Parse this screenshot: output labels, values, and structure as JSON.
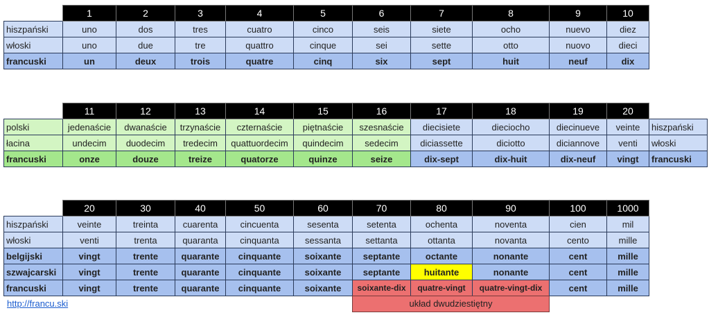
{
  "colors": {
    "header": "#000000",
    "blue": "#cddcf6",
    "blue_bold": "#a6c0ee",
    "green": "#d3f5c3",
    "green_bold": "#a4e78c",
    "red": "#ec7070",
    "yellow": "#ffff00"
  },
  "tables": [
    {
      "header": [
        "1",
        "2",
        "3",
        "4",
        "5",
        "6",
        "7",
        "8",
        "9",
        "10"
      ],
      "col_tones": [
        "blue",
        "blue",
        "blue",
        "blue",
        "blue",
        "blue",
        "blue",
        "blue",
        "blue",
        "blue"
      ],
      "rows": [
        {
          "label": "hiszpański",
          "tone": "blue",
          "bold": false,
          "cells": [
            "uno",
            "dos",
            "tres",
            "cuatro",
            "cinco",
            "seis",
            "siete",
            "ocho",
            "nuevo",
            "diez"
          ]
        },
        {
          "label": "włoski",
          "tone": "blue",
          "bold": false,
          "cells": [
            "uno",
            "due",
            "tre",
            "quattro",
            "cinque",
            "sei",
            "sette",
            "otto",
            "nuovo",
            "dieci"
          ]
        },
        {
          "label": "francuski",
          "tone": "blue",
          "bold": true,
          "cells": [
            "un",
            "deux",
            "trois",
            "quatre",
            "cinq",
            "six",
            "sept",
            "huit",
            "neuf",
            "dix"
          ]
        }
      ]
    },
    {
      "header": [
        "11",
        "12",
        "13",
        "14",
        "15",
        "16",
        "17",
        "18",
        "19",
        "20"
      ],
      "col_tones": [
        "green",
        "green",
        "green",
        "green",
        "green",
        "green",
        "blue",
        "blue",
        "blue",
        "blue"
      ],
      "rows": [
        {
          "label": "polski",
          "tone": "green",
          "right_label": "hiszpański",
          "bold": false,
          "cells": [
            "jedenaście",
            "dwanaście",
            "trzynaście",
            "czternaście",
            "piętnaście",
            "szesnaście",
            "diecisiete",
            "dieciocho",
            "diecinueve",
            "veinte"
          ]
        },
        {
          "label": "łacina",
          "tone": "green",
          "right_label": "włoski",
          "bold": false,
          "cells": [
            "undecim",
            "duodecim",
            "tredecim",
            "quattuordecim",
            "quindecim",
            "sedecim",
            "diciassette",
            "diciotto",
            "diciannove",
            "venti"
          ]
        },
        {
          "label": "francuski",
          "tone": "green",
          "right_label": "francuski",
          "bold": true,
          "cells": [
            "onze",
            "douze",
            "treize",
            "quatorze",
            "quinze",
            "seize",
            "dix-sept",
            "dix-huit",
            "dix-neuf",
            "vingt"
          ]
        }
      ]
    },
    {
      "header": [
        "20",
        "30",
        "40",
        "50",
        "60",
        "70",
        "80",
        "90",
        "100",
        "1000"
      ],
      "col_tones": [
        "blue",
        "blue",
        "blue",
        "blue",
        "blue",
        "blue",
        "blue",
        "blue",
        "blue",
        "blue"
      ],
      "rows": [
        {
          "label": "hiszpański",
          "tone": "blue",
          "bold": false,
          "cells": [
            "veinte",
            "treinta",
            "cuarenta",
            "cincuenta",
            "sesenta",
            "setenta",
            "ochenta",
            "noventa",
            "cien",
            "mil"
          ]
        },
        {
          "label": "włoski",
          "tone": "blue",
          "bold": false,
          "cells": [
            "venti",
            "trenta",
            "quaranta",
            "cinquanta",
            "sessanta",
            "settanta",
            "ottanta",
            "novanta",
            "cento",
            "mille"
          ]
        },
        {
          "label": "belgijski",
          "tone": "blue",
          "bold": true,
          "cells": [
            "vingt",
            "trente",
            "quarante",
            "cinquante",
            "soixante",
            "septante",
            "octante",
            "nonante",
            "cent",
            "mille"
          ]
        },
        {
          "label": "szwajcarski",
          "tone": "blue",
          "bold": true,
          "cells": [
            "vingt",
            "trente",
            "quarante",
            "cinquante",
            "soixante",
            "septante",
            "huitante",
            "nonante",
            "cent",
            "mille"
          ],
          "highlights": {
            "6": "yellow"
          }
        },
        {
          "label": "francuski",
          "tone": "blue",
          "bold": true,
          "cells": [
            "vingt",
            "trente",
            "quarante",
            "cinquante",
            "soixante",
            "soixante-dix",
            "quatre-vingt",
            "quatre-vingt-dix",
            "cent",
            "mille"
          ],
          "highlights": {
            "5": "red",
            "6": "red",
            "7": "red"
          }
        }
      ]
    }
  ],
  "note": "układ dwudziestiętny",
  "link": "http://francu.ski"
}
